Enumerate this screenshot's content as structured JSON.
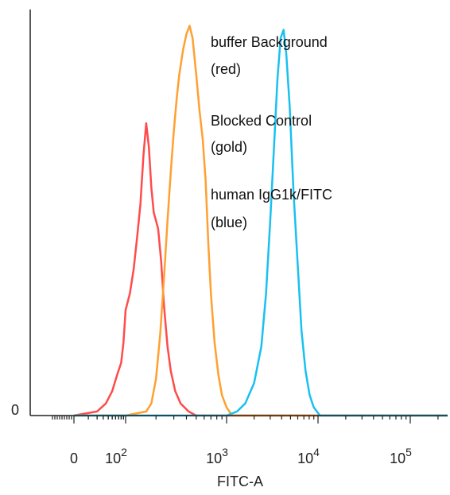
{
  "chart_data": {
    "type": "line",
    "xlabel": "FITC-A",
    "y_tick_labels": [
      "0"
    ],
    "x_ticks": [
      {
        "value": 0,
        "base": "0",
        "exp": ""
      },
      {
        "value": 100,
        "base": "10",
        "exp": "2"
      },
      {
        "value": 1000,
        "base": "10",
        "exp": "3"
      },
      {
        "value": 10000,
        "base": "10",
        "exp": "4"
      },
      {
        "value": 100000,
        "base": "10",
        "exp": "5"
      }
    ],
    "x_scale": "biexponential",
    "xlim": [
      -100,
      300000
    ],
    "ylim": [
      0,
      100
    ],
    "grid": false,
    "legend_placement": "top-right",
    "legend": [
      {
        "line1": "buffer Background",
        "line2": "(red)"
      },
      {
        "line1": "Blocked Control",
        "line2": "(gold)"
      },
      {
        "line1": "human IgG1k/FITC",
        "line2": "(blue)"
      }
    ],
    "series": [
      {
        "color": "#ff4b4b",
        "points": [
          [
            0,
            0
          ],
          [
            20,
            1
          ],
          [
            35,
            3
          ],
          [
            50,
            6
          ],
          [
            65,
            10
          ],
          [
            80,
            13
          ],
          [
            90,
            18
          ],
          [
            100,
            26
          ],
          [
            110,
            30
          ],
          [
            120,
            36
          ],
          [
            130,
            44
          ],
          [
            140,
            52
          ],
          [
            150,
            64
          ],
          [
            160,
            72
          ],
          [
            170,
            66
          ],
          [
            180,
            56
          ],
          [
            190,
            50
          ],
          [
            200,
            48
          ],
          [
            210,
            46
          ],
          [
            225,
            38
          ],
          [
            240,
            27
          ],
          [
            260,
            17
          ],
          [
            280,
            11
          ],
          [
            310,
            6
          ],
          [
            350,
            3
          ],
          [
            420,
            1
          ],
          [
            500,
            0
          ],
          [
            700,
            0
          ],
          [
            1000,
            0
          ],
          [
            3000,
            0
          ],
          [
            10000,
            0
          ],
          [
            300000,
            0
          ]
        ]
      },
      {
        "color": "#ffa030",
        "points": [
          [
            0,
            0
          ],
          [
            100,
            0
          ],
          [
            160,
            1
          ],
          [
            180,
            3
          ],
          [
            200,
            9
          ],
          [
            220,
            20
          ],
          [
            240,
            34
          ],
          [
            260,
            48
          ],
          [
            280,
            60
          ],
          [
            300,
            70
          ],
          [
            320,
            78
          ],
          [
            340,
            84
          ],
          [
            370,
            90
          ],
          [
            400,
            94
          ],
          [
            430,
            96
          ],
          [
            460,
            93
          ],
          [
            500,
            84
          ],
          [
            540,
            75
          ],
          [
            580,
            68
          ],
          [
            620,
            58
          ],
          [
            660,
            42
          ],
          [
            700,
            30
          ],
          [
            760,
            18
          ],
          [
            830,
            10
          ],
          [
            900,
            5
          ],
          [
            1000,
            2
          ],
          [
            1150,
            0
          ],
          [
            3000,
            0
          ],
          [
            300000,
            0
          ]
        ]
      },
      {
        "color": "#19c0f0",
        "points": [
          [
            0,
            0
          ],
          [
            1000,
            0
          ],
          [
            1300,
            1
          ],
          [
            1600,
            3
          ],
          [
            2000,
            8
          ],
          [
            2400,
            17
          ],
          [
            2700,
            30
          ],
          [
            3000,
            48
          ],
          [
            3300,
            66
          ],
          [
            3600,
            83
          ],
          [
            3900,
            93
          ],
          [
            4200,
            95
          ],
          [
            4500,
            89
          ],
          [
            4900,
            76
          ],
          [
            5400,
            55
          ],
          [
            6000,
            37
          ],
          [
            6600,
            21
          ],
          [
            7300,
            11
          ],
          [
            8100,
            5
          ],
          [
            9000,
            2
          ],
          [
            10500,
            0
          ],
          [
            300000,
            0
          ]
        ]
      }
    ]
  }
}
